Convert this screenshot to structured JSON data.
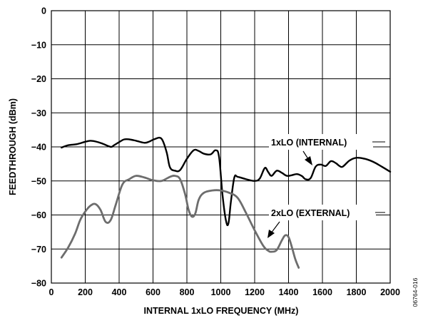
{
  "chart_data": {
    "type": "line",
    "title": "",
    "xlabel": "INTERNAL 1xLO FREQUENCY (MHz)",
    "ylabel": "FEEDTHROUGH (dBm)",
    "xlim": [
      0,
      2000
    ],
    "ylim": [
      -80,
      0
    ],
    "xticks": [
      0,
      200,
      400,
      600,
      800,
      1000,
      1200,
      1400,
      1600,
      1800,
      2000
    ],
    "yticks": [
      0,
      -10,
      -20,
      -30,
      -40,
      -50,
      -60,
      -70,
      -80
    ],
    "grid": true,
    "legend": "none",
    "side_label": "06764-016",
    "series": [
      {
        "name": "1xLO (INTERNAL)",
        "color": "#000000",
        "x": [
          60,
          100,
          150,
          200,
          230,
          260,
          300,
          350,
          370,
          400,
          430,
          460,
          500,
          550,
          580,
          610,
          650,
          680,
          700,
          730,
          760,
          800,
          840,
          870,
          900,
          940,
          970,
          990,
          1010,
          1030,
          1045,
          1060,
          1080,
          1100,
          1150,
          1200,
          1230,
          1260,
          1280,
          1300,
          1330,
          1360,
          1390,
          1420,
          1450,
          1480,
          1500,
          1530,
          1560,
          1590,
          1620,
          1650,
          1680,
          1700,
          1720,
          1760,
          1800,
          1850,
          1900,
          1950,
          2000
        ],
        "y": [
          -40.2,
          -39.5,
          -39.2,
          -38.5,
          -38.2,
          -38.4,
          -39.0,
          -40.0,
          -39.5,
          -38.6,
          -37.8,
          -37.8,
          -38.2,
          -38.8,
          -38.4,
          -37.7,
          -37.6,
          -41.5,
          -46.0,
          -47.0,
          -46.8,
          -43.5,
          -41.0,
          -41.2,
          -42.0,
          -42.2,
          -41.0,
          -43.0,
          -54.0,
          -61.5,
          -62.5,
          -56.0,
          -49.0,
          -48.8,
          -49.5,
          -50.0,
          -49.3,
          -46.2,
          -47.4,
          -48.5,
          -47.0,
          -47.6,
          -48.5,
          -48.3,
          -48.0,
          -48.6,
          -49.5,
          -49.2,
          -45.8,
          -45.2,
          -45.6,
          -44.2,
          -44.8,
          -45.6,
          -45.8,
          -44.0,
          -43.2,
          -43.5,
          -44.4,
          -45.8,
          -47.3
        ]
      },
      {
        "name": "2xLO (EXTERNAL)",
        "color": "#6d6d6d",
        "x": [
          60,
          100,
          140,
          170,
          200,
          230,
          260,
          290,
          320,
          350,
          380,
          420,
          460,
          500,
          550,
          600,
          650,
          700,
          730,
          760,
          790,
          810,
          830,
          850,
          870,
          900,
          950,
          1000,
          1050,
          1100,
          1150,
          1200,
          1250,
          1280,
          1300,
          1330,
          1360,
          1380,
          1400,
          1420,
          1440,
          1460
        ],
        "y": [
          -72.5,
          -69.5,
          -65.5,
          -61.5,
          -59.0,
          -57.3,
          -56.8,
          -58.5,
          -62.0,
          -61.5,
          -57.0,
          -51.0,
          -49.5,
          -48.5,
          -49.0,
          -49.8,
          -50.0,
          -48.8,
          -48.5,
          -49.5,
          -54.0,
          -58.5,
          -60.5,
          -59.5,
          -55.5,
          -53.5,
          -52.8,
          -52.8,
          -53.5,
          -55.0,
          -59.5,
          -64.5,
          -69.0,
          -70.5,
          -70.8,
          -70.3,
          -67.5,
          -66.0,
          -66.5,
          -69.5,
          -73.0,
          -75.5
        ]
      }
    ],
    "annotations": [
      {
        "text": "1xLO (INTERNAL)",
        "series": 0
      },
      {
        "text": "2xLO (EXTERNAL)",
        "series": 1
      }
    ]
  }
}
